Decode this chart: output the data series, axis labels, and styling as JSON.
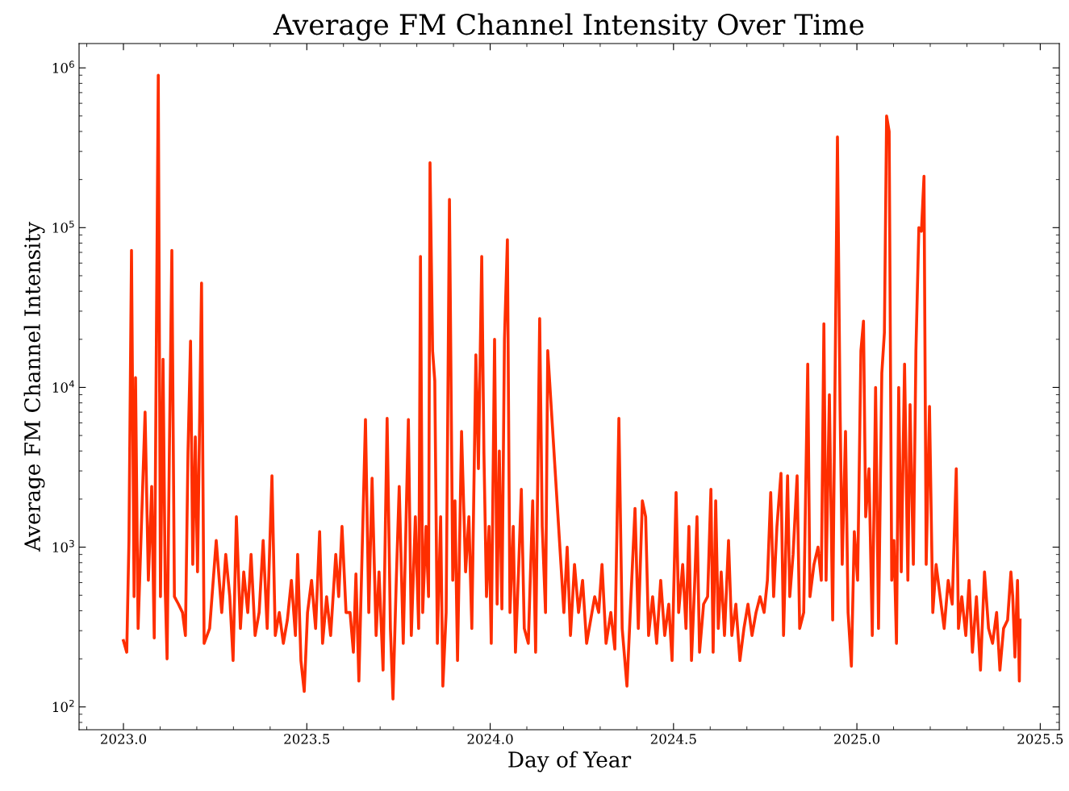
{
  "chart_data": {
    "type": "line",
    "title": "Average FM Channel Intensity Over Time",
    "xlabel": "Day of Year",
    "ylabel": "Average FM Channel Intensity",
    "log": "y",
    "grid": false,
    "marker": "none",
    "line_style": "solid",
    "xlim": [
      2022.879,
      2025.552
    ],
    "ylim": [
      72,
      1420000
    ],
    "xticks": [
      {
        "value": 2023.0,
        "label": "2023.0"
      },
      {
        "value": 2023.5,
        "label": "2023.5"
      },
      {
        "value": 2024.0,
        "label": "2024.0"
      },
      {
        "value": 2024.5,
        "label": "2024.5"
      },
      {
        "value": 2025.0,
        "label": "2025.0"
      },
      {
        "value": 2025.5,
        "label": "2025.5"
      }
    ],
    "yticks": [
      {
        "value": 100,
        "label": "10$^{2}$"
      },
      {
        "value": 1000,
        "label": "10$^{3}$"
      },
      {
        "value": 10000,
        "label": "10$^{4}$"
      },
      {
        "value": 100000,
        "label": "10$^{5}$"
      },
      {
        "value": 1000000,
        "label": "10$^{6}$"
      }
    ],
    "series": [
      {
        "color": "#fe2e00",
        "x": [
          2023.0,
          2023.009,
          2023.015,
          2023.022,
          2023.029,
          2023.033,
          2023.04,
          2023.059,
          2023.068,
          2023.077,
          2023.084,
          2023.095,
          2023.101,
          2023.108,
          2023.114,
          2023.119,
          2023.125,
          2023.132,
          2023.139,
          2023.15,
          2023.161,
          2023.169,
          2023.176,
          2023.183,
          2023.189,
          2023.196,
          2023.202,
          2023.213,
          2023.22,
          2023.235,
          2023.253,
          2023.268,
          2023.279,
          2023.29,
          2023.299,
          2023.308,
          2023.319,
          2023.328,
          2023.339,
          2023.348,
          2023.359,
          2023.37,
          2023.381,
          2023.392,
          2023.405,
          2023.414,
          2023.425,
          2023.436,
          2023.447,
          2023.458,
          2023.469,
          2023.475,
          2023.484,
          2023.493,
          2023.502,
          2023.513,
          2023.524,
          2023.535,
          2023.543,
          2023.554,
          2023.565,
          2023.579,
          2023.587,
          2023.596,
          2023.607,
          2023.618,
          2023.627,
          2023.634,
          2023.642,
          2023.66,
          2023.669,
          2023.678,
          2023.689,
          2023.697,
          2023.708,
          2023.719,
          2023.728,
          2023.735,
          2023.744,
          2023.752,
          2023.763,
          2023.777,
          2023.785,
          2023.796,
          2023.805,
          2023.81,
          2023.816,
          2023.825,
          2023.832,
          2023.836,
          2023.843,
          2023.849,
          2023.856,
          2023.865,
          2023.871,
          2023.88,
          2023.889,
          2023.898,
          2023.904,
          2023.911,
          2023.922,
          2023.933,
          2023.942,
          2023.95,
          2023.961,
          2023.968,
          2023.977,
          2023.983,
          2023.99,
          2023.997,
          2024.003,
          2024.012,
          2024.019,
          2024.025,
          2024.032,
          2024.039,
          2024.047,
          2024.054,
          2024.063,
          2024.069,
          2024.078,
          2024.085,
          2024.093,
          2024.104,
          2024.116,
          2024.124,
          2024.135,
          2024.142,
          2024.151,
          2024.157,
          2024.193,
          2024.201,
          2024.21,
          2024.219,
          2024.23,
          2024.241,
          2024.252,
          2024.263,
          2024.274,
          2024.285,
          2024.296,
          2024.305,
          2024.316,
          2024.329,
          2024.34,
          2024.351,
          2024.36,
          2024.373,
          2024.384,
          2024.395,
          2024.404,
          2024.415,
          2024.424,
          2024.432,
          2024.443,
          2024.454,
          2024.465,
          2024.476,
          2024.487,
          2024.496,
          2024.507,
          2024.514,
          2024.525,
          2024.534,
          2024.542,
          2024.549,
          2024.558,
          2024.564,
          2024.571,
          2024.582,
          2024.593,
          2024.602,
          2024.608,
          2024.615,
          2024.622,
          2024.63,
          2024.639,
          2024.65,
          2024.659,
          2024.67,
          2024.681,
          2024.692,
          2024.703,
          2024.714,
          2024.725,
          2024.736,
          2024.747,
          2024.756,
          2024.765,
          2024.773,
          2024.782,
          2024.793,
          2024.8,
          2024.811,
          2024.817,
          2024.826,
          2024.837,
          2024.844,
          2024.855,
          2024.866,
          2024.872,
          2024.883,
          2024.894,
          2024.903,
          2024.91,
          2024.916,
          2024.925,
          2024.934,
          2024.947,
          2024.954,
          2024.96,
          2024.969,
          2024.976,
          2024.985,
          2024.993,
          2025.002,
          2025.011,
          2025.018,
          2025.024,
          2025.033,
          2025.042,
          2025.051,
          2025.059,
          2025.068,
          2025.075,
          2025.081,
          2025.088,
          2025.095,
          2025.101,
          2025.108,
          2025.114,
          2025.121,
          2025.13,
          2025.139,
          2025.145,
          2025.154,
          2025.161,
          2025.169,
          2025.176,
          2025.183,
          2025.189,
          2025.198,
          2025.207,
          2025.216,
          2025.227,
          2025.238,
          2025.249,
          2025.26,
          2025.271,
          2025.277,
          2025.286,
          2025.297,
          2025.306,
          2025.315,
          2025.326,
          2025.337,
          2025.348,
          2025.359,
          2025.37,
          2025.381,
          2025.39,
          2025.4,
          2025.411,
          2025.42,
          2025.425,
          2025.431,
          2025.438,
          2025.443,
          2025.445
        ],
        "values": [
          260,
          220,
          1100,
          72000,
          490,
          11500,
          310,
          7000,
          620,
          2400,
          270,
          900000,
          490,
          15000,
          540,
          200,
          3500,
          72000,
          490,
          440,
          390,
          280,
          3900,
          19500,
          780,
          4900,
          700,
          45000,
          250,
          310,
          1100,
          390,
          900,
          490,
          195,
          1550,
          310,
          700,
          390,
          900,
          280,
          390,
          1100,
          310,
          2800,
          280,
          390,
          250,
          350,
          620,
          280,
          900,
          195,
          125,
          390,
          620,
          310,
          1250,
          250,
          490,
          280,
          900,
          490,
          1350,
          390,
          390,
          220,
          680,
          145,
          6300,
          390,
          2700,
          280,
          700,
          170,
          6400,
          310,
          112,
          620,
          2400,
          250,
          6300,
          280,
          1550,
          310,
          66000,
          390,
          1350,
          490,
          255000,
          17000,
          11000,
          250,
          1550,
          135,
          390,
          150000,
          620,
          1950,
          195,
          5300,
          700,
          1550,
          310,
          16000,
          3100,
          66000,
          3900,
          490,
          1350,
          250,
          20000,
          440,
          4000,
          410,
          20000,
          84000,
          390,
          1350,
          220,
          780,
          2300,
          310,
          250,
          1950,
          220,
          27000,
          1350,
          390,
          17000,
          780,
          390,
          1000,
          280,
          780,
          390,
          620,
          250,
          350,
          490,
          390,
          780,
          250,
          390,
          230,
          6400,
          310,
          135,
          490,
          1750,
          310,
          1950,
          1550,
          280,
          490,
          250,
          620,
          280,
          440,
          195,
          2200,
          390,
          780,
          310,
          1350,
          195,
          620,
          1550,
          220,
          440,
          490,
          2300,
          220,
          1950,
          310,
          700,
          280,
          1100,
          280,
          440,
          195,
          310,
          440,
          280,
          390,
          490,
          390,
          620,
          2200,
          490,
          1350,
          2900,
          280,
          2800,
          490,
          900,
          2800,
          310,
          390,
          14000,
          490,
          780,
          1000,
          620,
          25000,
          620,
          9000,
          350,
          370000,
          7800,
          780,
          5300,
          390,
          180,
          1250,
          620,
          17000,
          26000,
          1550,
          3100,
          280,
          10000,
          310,
          12300,
          22000,
          500000,
          400000,
          620,
          1100,
          250,
          10000,
          700,
          14000,
          620,
          7800,
          780,
          17000,
          100000,
          95000,
          210000,
          780,
          7600,
          390,
          780,
          490,
          310,
          620,
          440,
          3100,
          310,
          490,
          280,
          620,
          220,
          490,
          170,
          700,
          310,
          250,
          390,
          170,
          310,
          350,
          700,
          490,
          205,
          620,
          145,
          350
        ]
      }
    ]
  }
}
